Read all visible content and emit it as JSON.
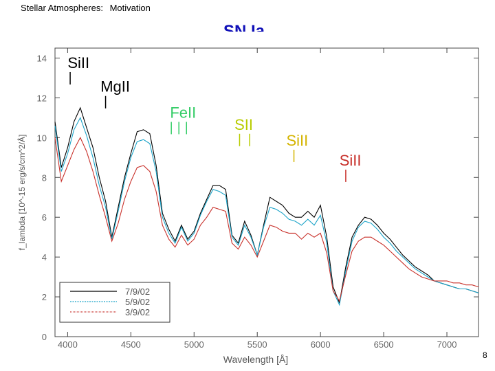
{
  "header": {
    "topic": "Stellar Atmospheres:",
    "section": "Motivation"
  },
  "slide_title": "SN Ia",
  "page_number": "8",
  "chart_data": {
    "type": "line",
    "xlabel": "Wavelength [Å]",
    "ylabel": "f_lambda [10^-15 erg/s/cm^2/Å]",
    "xlim": [
      3900,
      7250
    ],
    "ylim": [
      0,
      14.5
    ],
    "x_ticks": [
      4000,
      4500,
      5000,
      5500,
      6000,
      6500,
      7000
    ],
    "y_ticks": [
      0,
      2,
      4,
      6,
      8,
      10,
      12,
      14
    ],
    "grid": false,
    "legend_placement": "bottom-left",
    "x": [
      3900,
      3950,
      4000,
      4050,
      4100,
      4150,
      4200,
      4250,
      4300,
      4350,
      4400,
      4450,
      4500,
      4550,
      4600,
      4650,
      4700,
      4750,
      4800,
      4850,
      4900,
      4950,
      5000,
      5050,
      5100,
      5150,
      5200,
      5250,
      5300,
      5350,
      5400,
      5450,
      5500,
      5550,
      5600,
      5650,
      5700,
      5750,
      5800,
      5850,
      5900,
      5950,
      6000,
      6050,
      6100,
      6150,
      6200,
      6250,
      6300,
      6350,
      6400,
      6450,
      6500,
      6550,
      6600,
      6650,
      6700,
      6750,
      6800,
      6850,
      6900,
      6950,
      7000,
      7050,
      7100,
      7150,
      7200,
      7250
    ],
    "series": [
      {
        "name": "7/9/02",
        "color": "#000000",
        "values": [
          10.8,
          8.5,
          9.5,
          10.8,
          11.5,
          10.5,
          9.5,
          8.0,
          6.8,
          5.0,
          6.5,
          8.0,
          9.2,
          10.3,
          10.4,
          10.2,
          8.6,
          6.2,
          5.4,
          4.8,
          5.6,
          4.9,
          5.3,
          6.2,
          6.9,
          7.6,
          7.6,
          7.4,
          5.1,
          4.7,
          5.8,
          5.1,
          4.1,
          5.6,
          7.0,
          6.8,
          6.6,
          6.2,
          6.0,
          6.0,
          6.3,
          6.0,
          6.6,
          5.0,
          2.5,
          1.7,
          3.5,
          5.0,
          5.6,
          6.0,
          5.9,
          5.6,
          5.2,
          4.9,
          4.5,
          4.1,
          3.8,
          3.5,
          3.3,
          3.1,
          2.8,
          2.7,
          2.6,
          2.5,
          2.4,
          2.4,
          2.3,
          2.2
        ]
      },
      {
        "name": "5/9/02",
        "color": "#1aa3c8",
        "values": [
          10.6,
          8.3,
          9.2,
          10.4,
          11.0,
          10.1,
          9.0,
          7.6,
          6.5,
          4.9,
          6.3,
          7.8,
          9.0,
          9.8,
          9.9,
          9.7,
          8.3,
          6.0,
          5.2,
          4.7,
          5.5,
          4.8,
          5.2,
          6.1,
          6.8,
          7.4,
          7.3,
          7.1,
          5.0,
          4.6,
          5.6,
          5.0,
          4.1,
          5.5,
          6.5,
          6.4,
          6.2,
          5.9,
          5.8,
          5.6,
          5.9,
          5.6,
          6.1,
          4.7,
          2.3,
          1.6,
          3.3,
          4.8,
          5.5,
          5.8,
          5.7,
          5.4,
          5.0,
          4.7,
          4.3,
          4.0,
          3.7,
          3.4,
          3.2,
          3.0,
          2.8,
          2.7,
          2.6,
          2.5,
          2.4,
          2.4,
          2.3,
          2.2
        ]
      },
      {
        "name": "3/9/02",
        "color": "#c8302a",
        "values": [
          10.0,
          7.8,
          8.6,
          9.4,
          10.0,
          9.3,
          8.3,
          7.1,
          6.0,
          4.8,
          5.7,
          6.9,
          7.8,
          8.5,
          8.6,
          8.3,
          7.3,
          5.6,
          4.9,
          4.5,
          5.1,
          4.6,
          4.9,
          5.6,
          6.0,
          6.5,
          6.4,
          6.3,
          4.7,
          4.4,
          5.0,
          4.6,
          4.0,
          4.8,
          5.6,
          5.5,
          5.3,
          5.2,
          5.2,
          4.9,
          5.2,
          5.0,
          5.2,
          4.2,
          2.3,
          1.8,
          3.1,
          4.3,
          4.8,
          5.0,
          5.0,
          4.8,
          4.6,
          4.3,
          4.0,
          3.7,
          3.4,
          3.2,
          3.0,
          2.9,
          2.8,
          2.8,
          2.8,
          2.7,
          2.7,
          2.6,
          2.6,
          2.5
        ]
      }
    ],
    "annotations": [
      {
        "text": "SiII",
        "x": 4000,
        "y": 13.5,
        "line_x": 4020,
        "color": "#000000"
      },
      {
        "text": "MgII",
        "x": 4260,
        "y": 12.3,
        "line_x": 4300,
        "color": "#000000"
      },
      {
        "text": "FeII",
        "x": 4810,
        "y": 11.0,
        "line_xs": [
          4820,
          4880,
          4940
        ],
        "color": "#33cc66"
      },
      {
        "text": "SII",
        "x": 5320,
        "y": 10.4,
        "line_xs": [
          5360,
          5440
        ],
        "color": "#b8cc00"
      },
      {
        "text": "SiII",
        "x": 5730,
        "y": 9.6,
        "line_x": 5790,
        "color": "#d4b400"
      },
      {
        "text": "SiII",
        "x": 6150,
        "y": 8.6,
        "line_x": 6200,
        "color": "#c8302a"
      }
    ]
  }
}
